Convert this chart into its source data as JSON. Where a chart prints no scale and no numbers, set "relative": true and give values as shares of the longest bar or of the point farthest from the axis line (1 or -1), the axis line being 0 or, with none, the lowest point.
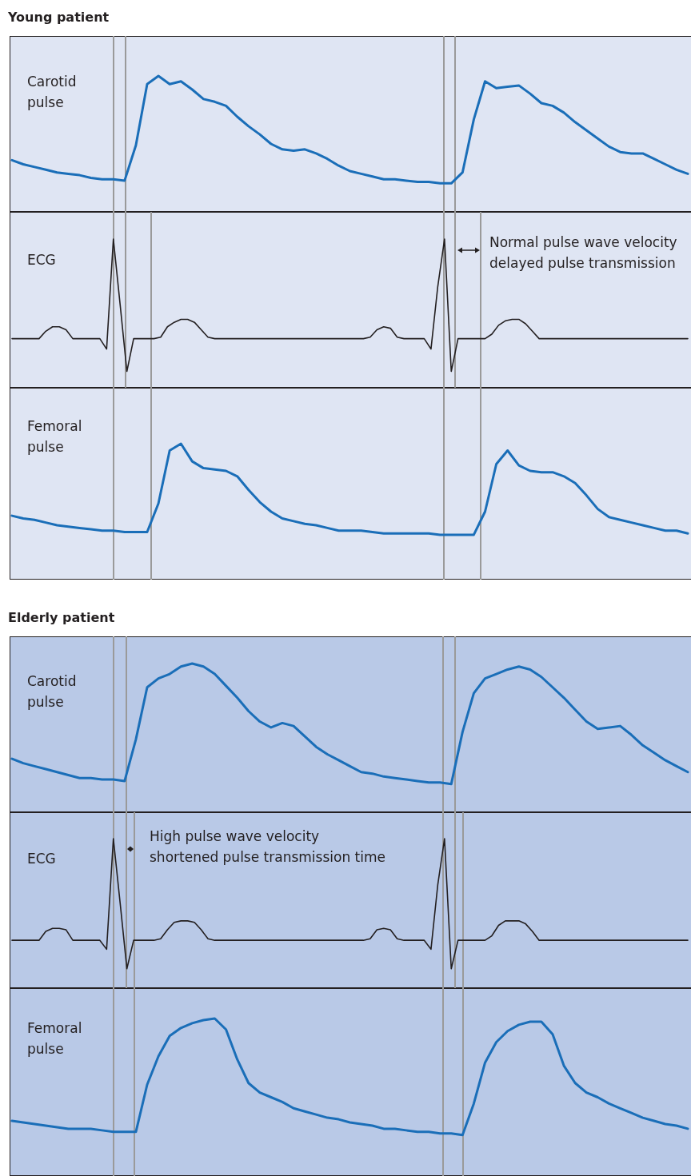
{
  "chart_data": [
    {
      "type": "line",
      "title": "Young patient",
      "ylabel": "Carotid pulse",
      "relative": true,
      "marker": "none",
      "categories": [
        null,
        null,
        null,
        null,
        null,
        null,
        null,
        null,
        null,
        null,
        null,
        null,
        null,
        null,
        null,
        null,
        null,
        null,
        null,
        null,
        null,
        null,
        null,
        null,
        null,
        null,
        null,
        null,
        null,
        null,
        null,
        null,
        null,
        null,
        null,
        null,
        null,
        null,
        null,
        null,
        null,
        null,
        null,
        null,
        null,
        null,
        null,
        null,
        null,
        null,
        null,
        null,
        null,
        null,
        null,
        null,
        null,
        null,
        null,
        null,
        null
      ],
      "series": [
        {
          "color": "#1a6eb8",
          "values": [
            0.38,
            0.35,
            0.33,
            0.31,
            0.29,
            0.28,
            0.27,
            0.25,
            0.24,
            0.24,
            0.23,
            0.49,
            0.94,
            1.0,
            0.94,
            0.96,
            0.9,
            0.83,
            0.81,
            0.78,
            0.7,
            0.63,
            0.57,
            0.5,
            0.46,
            0.45,
            0.46,
            0.43,
            0.39,
            0.34,
            0.3,
            0.28,
            0.26,
            0.24,
            0.24,
            0.23,
            0.22,
            0.22,
            0.21,
            0.21,
            0.29,
            0.68,
            0.96,
            0.91,
            0.92,
            0.93,
            0.87,
            0.8,
            0.78,
            0.73,
            0.66,
            0.6,
            0.54,
            0.48,
            0.44,
            0.43,
            0.43,
            0.39,
            0.35,
            0.31,
            0.28
          ]
        }
      ]
    },
    {
      "type": "line",
      "ylabel": "ECG",
      "relative": true,
      "marker": "none",
      "annotations": [
        "Normal pulse wave velocity",
        "delayed pulse transmission"
      ],
      "categories": [
        null,
        null,
        null,
        null,
        null,
        null,
        null,
        null,
        null,
        null,
        null,
        null,
        null,
        null,
        null,
        null,
        null,
        null,
        null,
        null,
        null,
        null,
        null,
        null,
        null,
        null,
        null,
        null,
        null,
        null,
        null,
        null,
        null,
        null,
        null,
        null,
        null,
        null,
        null,
        null,
        null,
        null,
        null,
        null,
        null,
        null,
        null,
        null,
        null,
        null,
        null,
        null,
        null,
        null,
        null,
        null,
        null,
        null,
        null,
        null,
        null,
        null,
        null,
        null,
        null,
        null,
        null,
        null,
        null,
        null,
        null,
        null,
        null,
        null,
        null,
        null,
        null,
        null,
        null,
        null,
        null,
        null,
        null,
        null,
        null,
        null,
        null,
        null,
        null,
        null,
        null,
        null,
        null,
        null,
        null,
        null,
        null,
        null,
        null,
        null,
        null
      ],
      "series": [
        {
          "color": "#231f20",
          "values": [
            0.33,
            0.33,
            0.33,
            0.33,
            0.33,
            0.38,
            0.41,
            0.41,
            0.39,
            0.33,
            0.33,
            0.33,
            0.33,
            0.33,
            0.26,
            1,
            0.56,
            0.11,
            0.33,
            0.33,
            0.33,
            0.33,
            0.34,
            0.41,
            0.44,
            0.46,
            0.46,
            0.44,
            0.39,
            0.34,
            0.33,
            0.33,
            0.33,
            0.33,
            0.33,
            0.33,
            0.33,
            0.33,
            0.33,
            0.33,
            0.33,
            0.33,
            0.33,
            0.33,
            0.33,
            0.33,
            0.33,
            0.33,
            0.33,
            0.33,
            0.33,
            0.33,
            0.33,
            0.34,
            0.39,
            0.41,
            0.4,
            0.34,
            0.33,
            0.33,
            0.33,
            0.33,
            0.26,
            0.68,
            1,
            0.11,
            0.33,
            0.33,
            0.33,
            0.33,
            0.33,
            0.36,
            0.42,
            0.45,
            0.46,
            0.46,
            0.43,
            0.38,
            0.33,
            0.33,
            0.33,
            0.33,
            0.33,
            0.33,
            0.33,
            0.33,
            0.33,
            0.33,
            0.33,
            0.33,
            0.33,
            0.33,
            0.33,
            0.33,
            0.33,
            0.33,
            0.33,
            0.33,
            0.33,
            0.33,
            0.33
          ]
        }
      ]
    },
    {
      "type": "line",
      "ylabel": "Femoral pulse",
      "relative": true,
      "marker": "none",
      "categories": [
        null,
        null,
        null,
        null,
        null,
        null,
        null,
        null,
        null,
        null,
        null,
        null,
        null,
        null,
        null,
        null,
        null,
        null,
        null,
        null,
        null,
        null,
        null,
        null,
        null,
        null,
        null,
        null,
        null,
        null,
        null,
        null,
        null,
        null,
        null,
        null,
        null,
        null,
        null,
        null,
        null,
        null,
        null,
        null,
        null,
        null,
        null,
        null,
        null,
        null,
        null,
        null,
        null,
        null,
        null,
        null,
        null,
        null,
        null,
        null,
        null
      ],
      "series": [
        {
          "color": "#1a6eb8",
          "values": [
            0.47,
            0.45,
            0.44,
            0.42,
            0.4,
            0.39,
            0.38,
            0.37,
            0.36,
            0.36,
            0.35,
            0.35,
            0.35,
            0.56,
            0.95,
            1.0,
            0.87,
            0.82,
            0.81,
            0.8,
            0.76,
            0.66,
            0.57,
            0.5,
            0.45,
            0.43,
            0.41,
            0.4,
            0.38,
            0.36,
            0.36,
            0.36,
            0.35,
            0.34,
            0.34,
            0.34,
            0.34,
            0.34,
            0.33,
            0.33,
            0.33,
            0.33,
            0.5,
            0.85,
            0.95,
            0.84,
            0.8,
            0.79,
            0.79,
            0.76,
            0.71,
            0.62,
            0.52,
            0.46,
            0.44,
            0.42,
            0.4,
            0.38,
            0.36,
            0.36,
            0.34
          ]
        }
      ]
    },
    {
      "type": "line",
      "title": "Elderly patient",
      "ylabel": "Carotid pulse",
      "relative": true,
      "marker": "none",
      "categories": [
        null,
        null,
        null,
        null,
        null,
        null,
        null,
        null,
        null,
        null,
        null,
        null,
        null,
        null,
        null,
        null,
        null,
        null,
        null,
        null,
        null,
        null,
        null,
        null,
        null,
        null,
        null,
        null,
        null,
        null,
        null,
        null,
        null,
        null,
        null,
        null,
        null,
        null,
        null,
        null,
        null,
        null,
        null,
        null,
        null,
        null,
        null,
        null,
        null,
        null,
        null,
        null,
        null,
        null,
        null,
        null,
        null,
        null,
        null,
        null,
        null
      ],
      "series": [
        {
          "color": "#1a6eb8",
          "values": [
            0.36,
            0.33,
            0.31,
            0.29,
            0.27,
            0.25,
            0.23,
            0.23,
            0.22,
            0.22,
            0.21,
            0.49,
            0.84,
            0.9,
            0.93,
            0.98,
            1.0,
            0.98,
            0.93,
            0.85,
            0.77,
            0.68,
            0.61,
            0.57,
            0.6,
            0.58,
            0.51,
            0.44,
            0.39,
            0.35,
            0.31,
            0.27,
            0.26,
            0.24,
            0.23,
            0.22,
            0.21,
            0.2,
            0.2,
            0.19,
            0.54,
            0.8,
            0.9,
            0.93,
            0.96,
            0.98,
            0.96,
            0.91,
            0.84,
            0.77,
            0.69,
            0.61,
            0.56,
            0.57,
            0.58,
            0.52,
            0.45,
            0.4,
            0.35,
            0.31,
            0.27
          ]
        }
      ]
    },
    {
      "type": "line",
      "ylabel": "ECG",
      "relative": true,
      "marker": "none",
      "annotations": [
        "High pulse wave velocity",
        "shortened pulse transmission time"
      ],
      "categories": [
        null,
        null,
        null,
        null,
        null,
        null,
        null,
        null,
        null,
        null,
        null,
        null,
        null,
        null,
        null,
        null,
        null,
        null,
        null,
        null,
        null,
        null,
        null,
        null,
        null,
        null,
        null,
        null,
        null,
        null,
        null,
        null,
        null,
        null,
        null,
        null,
        null,
        null,
        null,
        null,
        null,
        null,
        null,
        null,
        null,
        null,
        null,
        null,
        null,
        null,
        null,
        null,
        null,
        null,
        null,
        null,
        null,
        null,
        null,
        null,
        null,
        null,
        null,
        null,
        null,
        null,
        null,
        null,
        null,
        null,
        null,
        null,
        null,
        null,
        null,
        null,
        null,
        null,
        null,
        null,
        null,
        null,
        null,
        null,
        null,
        null,
        null,
        null,
        null,
        null,
        null,
        null,
        null,
        null,
        null,
        null,
        null,
        null,
        null,
        null,
        null
      ],
      "series": [
        {
          "color": "#231f20",
          "values": [
            0.32,
            0.32,
            0.32,
            0.32,
            0.32,
            0.38,
            0.4,
            0.4,
            0.39,
            0.32,
            0.32,
            0.32,
            0.32,
            0.32,
            0.26,
            1,
            0.57,
            0.13,
            0.32,
            0.32,
            0.32,
            0.32,
            0.33,
            0.39,
            0.44,
            0.45,
            0.45,
            0.44,
            0.39,
            0.33,
            0.32,
            0.32,
            0.32,
            0.32,
            0.32,
            0.32,
            0.32,
            0.32,
            0.32,
            0.32,
            0.32,
            0.32,
            0.32,
            0.32,
            0.32,
            0.32,
            0.32,
            0.32,
            0.32,
            0.32,
            0.32,
            0.32,
            0.32,
            0.33,
            0.39,
            0.4,
            0.39,
            0.33,
            0.32,
            0.32,
            0.32,
            0.32,
            0.26,
            0.69,
            1,
            0.13,
            0.32,
            0.32,
            0.32,
            0.32,
            0.32,
            0.35,
            0.42,
            0.45,
            0.45,
            0.45,
            0.43,
            0.38,
            0.32,
            0.32,
            0.32,
            0.32,
            0.32,
            0.32,
            0.32,
            0.32,
            0.32,
            0.32,
            0.32,
            0.32,
            0.32,
            0.32,
            0.32,
            0.32,
            0.32,
            0.32,
            0.32,
            0.32,
            0.32,
            0.32,
            0.32
          ]
        }
      ]
    },
    {
      "type": "line",
      "ylabel": "Femoral pulse",
      "relative": true,
      "marker": "none",
      "categories": [
        null,
        null,
        null,
        null,
        null,
        null,
        null,
        null,
        null,
        null,
        null,
        null,
        null,
        null,
        null,
        null,
        null,
        null,
        null,
        null,
        null,
        null,
        null,
        null,
        null,
        null,
        null,
        null,
        null,
        null,
        null,
        null,
        null,
        null,
        null,
        null,
        null,
        null,
        null,
        null,
        null,
        null,
        null,
        null,
        null,
        null,
        null,
        null,
        null,
        null,
        null,
        null,
        null,
        null,
        null,
        null,
        null,
        null,
        null,
        null,
        null
      ],
      "series": [
        {
          "color": "#1a6eb8",
          "values": [
            0.35,
            0.34,
            0.33,
            0.32,
            0.31,
            0.3,
            0.3,
            0.3,
            0.29,
            0.28,
            0.28,
            0.28,
            0.58,
            0.76,
            0.89,
            0.94,
            0.97,
            0.99,
            1.0,
            0.93,
            0.74,
            0.59,
            0.53,
            0.5,
            0.47,
            0.43,
            0.41,
            0.39,
            0.37,
            0.36,
            0.34,
            0.33,
            0.32,
            0.3,
            0.3,
            0.29,
            0.28,
            0.28,
            0.27,
            0.27,
            0.26,
            0.46,
            0.72,
            0.85,
            0.92,
            0.96,
            0.98,
            0.98,
            0.9,
            0.7,
            0.59,
            0.53,
            0.5,
            0.46,
            0.43,
            0.4,
            0.37,
            0.35,
            0.33,
            0.32,
            0.3
          ]
        }
      ]
    }
  ]
}
